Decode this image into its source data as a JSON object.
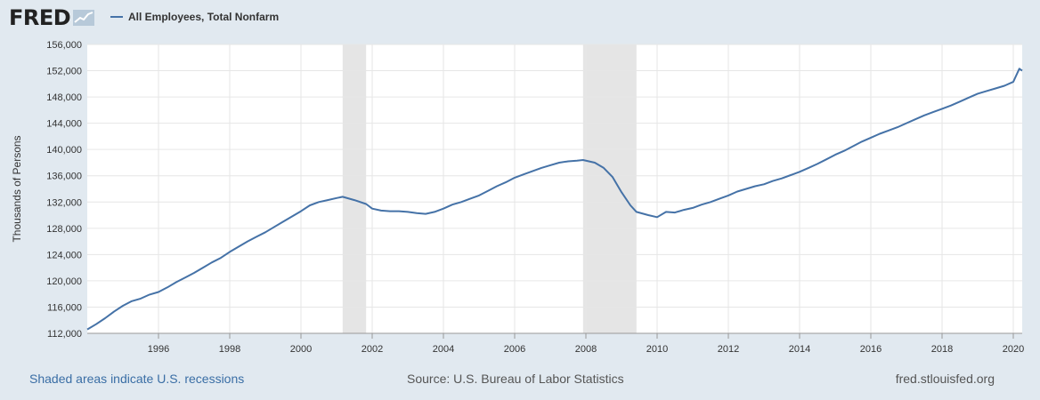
{
  "logo": {
    "text": "FRED"
  },
  "footer": {
    "recession_note": "Shaded areas indicate U.S. recessions",
    "source": "Source: U.S. Bureau of Labor Statistics",
    "site": "fred.stlouisfed.org"
  },
  "colors": {
    "line": "#4572a7",
    "recession": "#e5e5e5",
    "background": "#e1e9f0",
    "plot": "#ffffff"
  },
  "chart_data": {
    "type": "line",
    "title": "",
    "xlabel": "",
    "ylabel": "Thousands of Persons",
    "xlim": [
      1994.0,
      2020.25
    ],
    "ylim": [
      112000,
      156000
    ],
    "x_ticks": [
      1996,
      1998,
      2000,
      2002,
      2004,
      2006,
      2008,
      2010,
      2012,
      2014,
      2016,
      2018,
      2020
    ],
    "x_tick_labels": [
      "1996",
      "1998",
      "2000",
      "2002",
      "2004",
      "2006",
      "2008",
      "2010",
      "2012",
      "2014",
      "2016",
      "2018",
      "2020"
    ],
    "y_ticks": [
      112000,
      116000,
      120000,
      124000,
      128000,
      132000,
      136000,
      140000,
      144000,
      148000,
      152000,
      156000
    ],
    "y_tick_labels": [
      "112,000",
      "116,000",
      "120,000",
      "124,000",
      "128,000",
      "132,000",
      "136,000",
      "140,000",
      "144,000",
      "148,000",
      "152,000",
      "156,000"
    ],
    "grid": true,
    "recessions": [
      [
        2001.17,
        2001.83
      ],
      [
        2007.92,
        2009.42
      ]
    ],
    "series": [
      {
        "name": "All Employees, Total Nonfarm",
        "x": [
          1994.0,
          1994.25,
          1994.5,
          1994.75,
          1995.0,
          1995.25,
          1995.5,
          1995.75,
          1996.0,
          1996.25,
          1996.5,
          1996.75,
          1997.0,
          1997.25,
          1997.5,
          1997.75,
          1998.0,
          1998.25,
          1998.5,
          1998.75,
          1999.0,
          1999.25,
          1999.5,
          1999.75,
          2000.0,
          2000.25,
          2000.5,
          2000.75,
          2001.0,
          2001.17,
          2001.5,
          2001.83,
          2002.0,
          2002.25,
          2002.5,
          2002.75,
          2003.0,
          2003.25,
          2003.5,
          2003.75,
          2004.0,
          2004.25,
          2004.5,
          2004.75,
          2005.0,
          2005.25,
          2005.5,
          2005.75,
          2006.0,
          2006.25,
          2006.5,
          2006.75,
          2007.0,
          2007.25,
          2007.5,
          2007.75,
          2007.92,
          2008.25,
          2008.5,
          2008.75,
          2009.0,
          2009.25,
          2009.42,
          2009.75,
          2010.0,
          2010.25,
          2010.5,
          2010.75,
          2011.0,
          2011.25,
          2011.5,
          2011.75,
          2012.0,
          2012.25,
          2012.5,
          2012.75,
          2013.0,
          2013.25,
          2013.5,
          2013.75,
          2014.0,
          2014.25,
          2014.5,
          2014.75,
          2015.0,
          2015.25,
          2015.5,
          2015.75,
          2016.0,
          2016.25,
          2016.5,
          2016.75,
          2017.0,
          2017.25,
          2017.5,
          2017.75,
          2018.0,
          2018.25,
          2018.5,
          2018.75,
          2019.0,
          2019.25,
          2019.5,
          2019.75,
          2020.0,
          2020.17,
          2020.25
        ],
        "values": [
          112600,
          113400,
          114300,
          115300,
          116200,
          116900,
          117300,
          117900,
          118300,
          119000,
          119800,
          120500,
          121200,
          122000,
          122800,
          123500,
          124400,
          125200,
          126000,
          126700,
          127400,
          128200,
          129000,
          129800,
          130600,
          131500,
          132000,
          132300,
          132600,
          132800,
          132300,
          131700,
          131000,
          130700,
          130600,
          130600,
          130500,
          130300,
          130200,
          130500,
          131000,
          131600,
          132000,
          132500,
          133000,
          133700,
          134400,
          135000,
          135700,
          136200,
          136700,
          137200,
          137600,
          138000,
          138200,
          138300,
          138400,
          138000,
          137200,
          135800,
          133500,
          131500,
          130500,
          130000,
          129700,
          130500,
          130400,
          130800,
          131100,
          131600,
          132000,
          132500,
          133000,
          133600,
          134000,
          134400,
          134700,
          135200,
          135600,
          136100,
          136600,
          137200,
          137800,
          138500,
          139200,
          139800,
          140500,
          141200,
          141800,
          142400,
          142900,
          143400,
          144000,
          144600,
          145200,
          145700,
          146200,
          146700,
          147300,
          147900,
          148500,
          148900,
          149300,
          149700,
          150300,
          152300,
          152000
        ]
      }
    ]
  }
}
